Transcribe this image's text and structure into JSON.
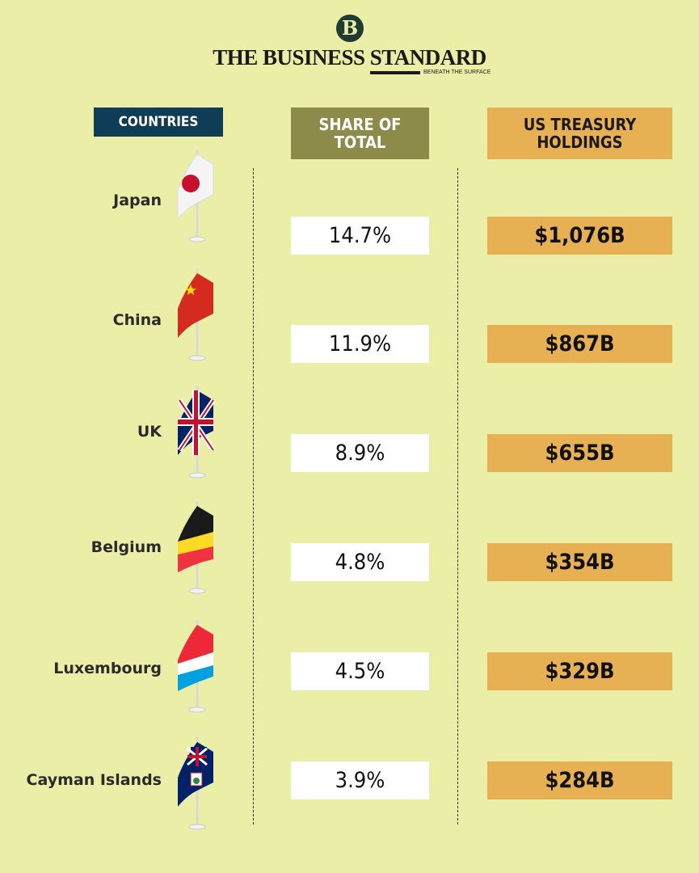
{
  "brand": {
    "logo_letter": "B",
    "name": "THE BUSINESS STANDARD",
    "tagline": "BENEATH THE SURFACE"
  },
  "colors": {
    "background": "#ebeea6",
    "countries_header": "#0f3d57",
    "share_header": "#8c8b4a",
    "holdings": "#e7b153"
  },
  "chart_data": {
    "type": "table",
    "columns": [
      "COUNTRIES",
      "SHARE OF TOTAL",
      "US TREASURY HOLDINGS"
    ],
    "rows": [
      {
        "country": "Japan",
        "flag": "japan-flag-icon",
        "share": "14.7%",
        "holdings": "$1,076B"
      },
      {
        "country": "China",
        "flag": "china-flag-icon",
        "share": "11.9%",
        "holdings": "$867B"
      },
      {
        "country": "UK",
        "flag": "uk-flag-icon",
        "share": "8.9%",
        "holdings": "$655B"
      },
      {
        "country": "Belgium",
        "flag": "belgium-flag-icon",
        "share": "4.8%",
        "holdings": "$354B"
      },
      {
        "country": "Luxembourg",
        "flag": "luxembourg-flag-icon",
        "share": "4.5%",
        "holdings": "$329B"
      },
      {
        "country": "Cayman Islands",
        "flag": "cayman-islands-flag-icon",
        "share": "3.9%",
        "holdings": "$284B"
      }
    ]
  }
}
